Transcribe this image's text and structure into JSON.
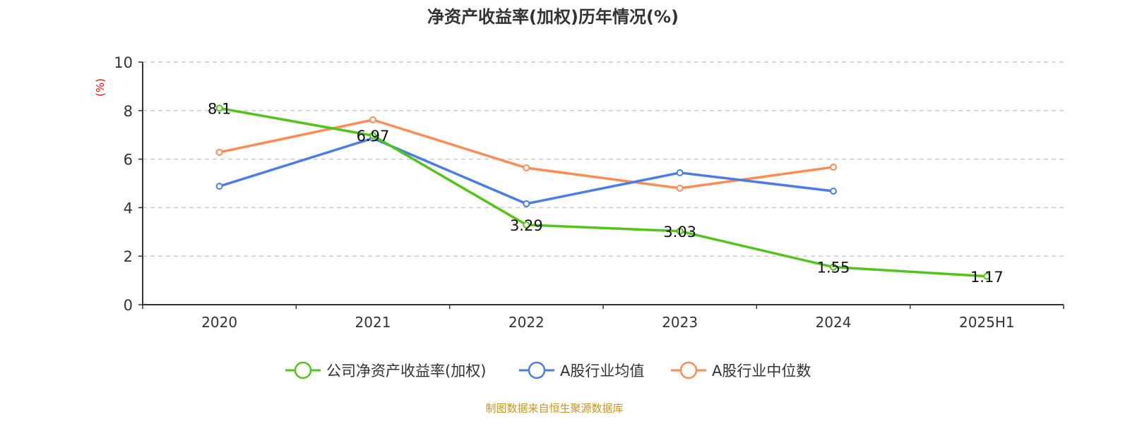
{
  "chart_data": {
    "type": "line",
    "title": "净资产收益率(加权)历年情况(%)",
    "ylabel": "(%)",
    "xlabel": "",
    "ylim": [
      0,
      10
    ],
    "yticks": [
      0,
      2,
      4,
      6,
      8,
      10
    ],
    "grid": true,
    "legend_position": "bottom",
    "categories": [
      "2020",
      "2021",
      "2022",
      "2023",
      "2024",
      "2025H1"
    ],
    "series": [
      {
        "name": "公司净资产收益率(加权)",
        "color": "#52c41a",
        "values": [
          8.1,
          6.97,
          3.29,
          3.03,
          1.55,
          1.17
        ],
        "labels": [
          "8.1",
          "6.97",
          "3.29",
          "3.03",
          "1.55",
          "1.17"
        ]
      },
      {
        "name": "A股行业均值",
        "color": "#4a7ee6",
        "values": [
          4.88,
          6.86,
          4.16,
          5.44,
          4.68,
          null
        ]
      },
      {
        "name": "A股行业中位数",
        "color": "#ff8c55",
        "values": [
          6.28,
          7.62,
          5.64,
          4.8,
          5.67,
          null
        ]
      }
    ],
    "source": "制图数据来自恒生聚源数据库"
  }
}
